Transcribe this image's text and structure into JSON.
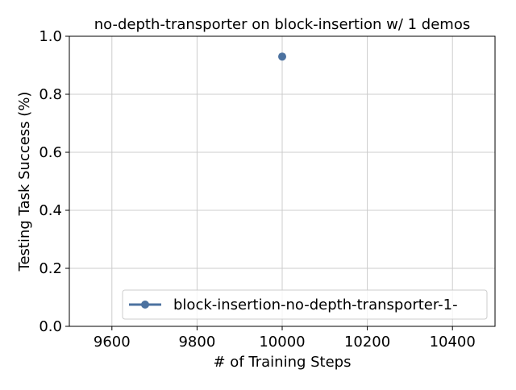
{
  "chart_data": {
    "type": "line",
    "title": "no-depth-transporter on block-insertion w/ 1 demos",
    "xlabel": "# of Training Steps",
    "ylabel": "Testing Task Success (%)",
    "xlim": [
      9500,
      10500
    ],
    "ylim": [
      0.0,
      1.0
    ],
    "xticks": [
      9600,
      9800,
      10000,
      10200,
      10400
    ],
    "xtick_labels": [
      "9600",
      "9800",
      "10000",
      "10200",
      "10400"
    ],
    "yticks": [
      0.0,
      0.2,
      0.4,
      0.6,
      0.8,
      1.0
    ],
    "ytick_labels": [
      "0.0",
      "0.2",
      "0.4",
      "0.6",
      "0.8",
      "1.0"
    ],
    "grid": true,
    "legend_position": "lower-right",
    "series": [
      {
        "name": "block-insertion-no-depth-transporter-1-",
        "color": "#4c72a0",
        "marker": "circle",
        "x": [
          10000
        ],
        "y": [
          0.93
        ]
      }
    ]
  }
}
